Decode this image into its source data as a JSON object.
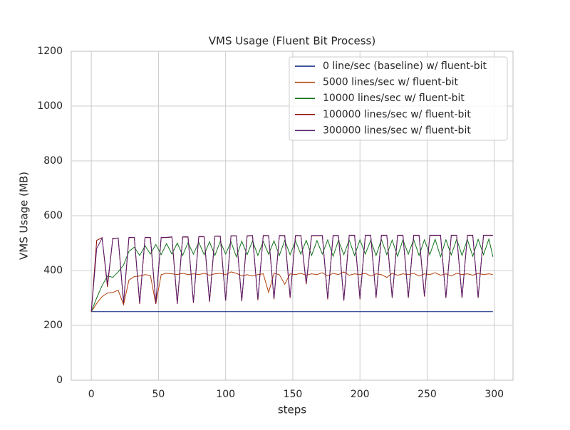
{
  "chart_data": {
    "type": "line",
    "title": "VMS Usage (Fluent Bit Process)",
    "x_label": "steps",
    "y_label": "VMS Usage (MB)",
    "x": [
      0,
      4,
      8,
      12,
      16,
      20,
      24,
      28,
      32,
      36,
      40,
      44,
      48,
      52,
      56,
      60,
      64,
      68,
      72,
      76,
      80,
      84,
      88,
      92,
      96,
      100,
      104,
      108,
      112,
      116,
      120,
      124,
      128,
      132,
      136,
      140,
      144,
      148,
      152,
      156,
      160,
      164,
      168,
      172,
      176,
      180,
      184,
      188,
      192,
      196,
      200,
      204,
      208,
      212,
      216,
      220,
      224,
      228,
      232,
      236,
      240,
      244,
      248,
      252,
      256,
      260,
      264,
      268,
      272,
      276,
      280,
      284,
      288,
      292,
      296,
      299
    ],
    "series": [
      {
        "name": "0 line/sec (baseline) w/ fluent-bit",
        "color": "#001c7f",
        "values": [
          250,
          250,
          250,
          250,
          250,
          250,
          250,
          250,
          250,
          250,
          250,
          250,
          250,
          250,
          250,
          250,
          250,
          250,
          250,
          250,
          250,
          250,
          250,
          250,
          250,
          250,
          250,
          250,
          250,
          250,
          250,
          250,
          250,
          250,
          250,
          250,
          250,
          250,
          250,
          250,
          250,
          250,
          250,
          250,
          250,
          250,
          250,
          250,
          250,
          250,
          250,
          250,
          250,
          250,
          250,
          250,
          250,
          250,
          250,
          250,
          250,
          250,
          250,
          250,
          250,
          250,
          250,
          250,
          250,
          250,
          250,
          250,
          250,
          250,
          250,
          250
        ]
      },
      {
        "name": "5000 lines/sec w/ fluent-bit",
        "color": "#b1400d",
        "values": [
          250,
          280,
          305,
          318,
          320,
          328,
          275,
          365,
          378,
          380,
          385,
          382,
          278,
          385,
          390,
          388,
          385,
          390,
          385,
          388,
          385,
          390,
          383,
          388,
          390,
          385,
          395,
          390,
          380,
          385,
          380,
          385,
          388,
          320,
          390,
          385,
          350,
          388,
          385,
          390,
          383,
          388,
          385,
          392,
          380,
          390,
          385,
          395,
          383,
          388,
          385,
          390,
          380,
          388,
          385,
          375,
          390,
          383,
          388,
          385,
          390,
          380,
          388,
          385,
          392,
          383,
          388,
          380,
          390,
          385,
          388,
          383,
          390,
          385,
          388,
          385
        ]
      },
      {
        "name": "10000 lines/sec w/ fluent-bit",
        "color": "#12711c",
        "values": [
          250,
          300,
          345,
          380,
          375,
          395,
          420,
          470,
          485,
          455,
          490,
          460,
          495,
          458,
          498,
          460,
          500,
          455,
          502,
          460,
          503,
          458,
          505,
          455,
          506,
          460,
          505,
          450,
          507,
          458,
          508,
          455,
          506,
          460,
          508,
          455,
          510,
          458,
          508,
          460,
          510,
          455,
          509,
          460,
          512,
          452,
          510,
          458,
          511,
          455,
          512,
          460,
          510,
          455,
          513,
          458,
          511,
          452,
          512,
          460,
          513,
          455,
          512,
          458,
          514,
          450,
          512,
          457,
          514,
          455,
          513,
          452,
          514,
          458,
          515,
          450
        ]
      },
      {
        "name": "100000 lines/sec w/ fluent-bit",
        "color": "#8c0800",
        "values": [
          250,
          510,
          520,
          340,
          518,
          518,
          280,
          520,
          520,
          278,
          520,
          520,
          280,
          520,
          520,
          522,
          278,
          522,
          522,
          282,
          523,
          523,
          285,
          525,
          525,
          290,
          526,
          526,
          288,
          526,
          527,
          292,
          527,
          527,
          295,
          527,
          527,
          300,
          527,
          527,
          350,
          527,
          527,
          527,
          295,
          527,
          527,
          290,
          528,
          528,
          295,
          528,
          528,
          300,
          528,
          528,
          300,
          528,
          528,
          300,
          528,
          528,
          305,
          528,
          528,
          528,
          300,
          528,
          528,
          300,
          528,
          528,
          300,
          528,
          528,
          528
        ]
      },
      {
        "name": "300000 lines/sec w/ fluent-bit",
        "color": "#591e71",
        "values": [
          250,
          480,
          518,
          350,
          516,
          519,
          285,
          521,
          521,
          282,
          521,
          521,
          283,
          521,
          521,
          523,
          280,
          523,
          523,
          285,
          524,
          524,
          287,
          526,
          526,
          292,
          527,
          527,
          290,
          527,
          528,
          295,
          528,
          528,
          298,
          528,
          528,
          305,
          528,
          528,
          355,
          528,
          528,
          528,
          298,
          528,
          528,
          292,
          529,
          529,
          298,
          529,
          529,
          302,
          529,
          529,
          302,
          529,
          529,
          302,
          529,
          529,
          308,
          529,
          529,
          529,
          302,
          529,
          529,
          302,
          529,
          529,
          302,
          529,
          529,
          529
        ]
      }
    ],
    "xlim": [
      -14.95,
      313.95
    ],
    "ylim": [
      0,
      1200
    ],
    "xticks": [
      0,
      50,
      100,
      150,
      200,
      250,
      300
    ],
    "yticks": [
      0,
      200,
      400,
      600,
      800,
      1000,
      1200
    ],
    "grid": true,
    "legend": "upper right"
  }
}
